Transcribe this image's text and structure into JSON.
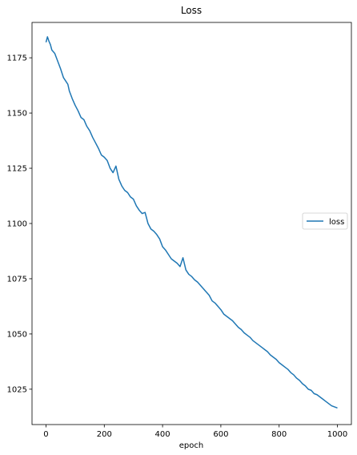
{
  "chart_data": {
    "type": "line",
    "title": "Loss",
    "xlabel": "epoch",
    "ylabel": "",
    "xlim": [
      -48,
      1048
    ],
    "ylim": [
      1009,
      1191
    ],
    "xticks": [
      0,
      200,
      400,
      600,
      800,
      1000
    ],
    "yticks": [
      1025,
      1050,
      1075,
      1100,
      1125,
      1150,
      1175
    ],
    "grid": false,
    "legend_position": "center-right",
    "line_color": "#1f77b4",
    "series": [
      {
        "name": "loss",
        "x": [
          0,
          5,
          10,
          15,
          20,
          30,
          40,
          50,
          60,
          70,
          75,
          80,
          90,
          100,
          110,
          120,
          130,
          140,
          150,
          160,
          170,
          180,
          190,
          200,
          210,
          220,
          230,
          240,
          250,
          260,
          270,
          280,
          290,
          300,
          310,
          320,
          330,
          340,
          350,
          360,
          370,
          380,
          390,
          400,
          410,
          420,
          430,
          440,
          450,
          460,
          470,
          480,
          490,
          500,
          510,
          520,
          530,
          540,
          550,
          560,
          570,
          580,
          590,
          600,
          610,
          620,
          630,
          640,
          650,
          660,
          670,
          680,
          690,
          700,
          710,
          720,
          730,
          740,
          750,
          760,
          770,
          780,
          790,
          800,
          810,
          820,
          830,
          840,
          850,
          860,
          870,
          880,
          890,
          900,
          910,
          920,
          930,
          940,
          950,
          960,
          970,
          980,
          990,
          1000
        ],
        "y": [
          1182.0,
          1184.5,
          1182.5,
          1181.0,
          1178.5,
          1177.0,
          1173.5,
          1170.0,
          1166.0,
          1164.0,
          1163.0,
          1160.0,
          1156.5,
          1153.5,
          1151.0,
          1148.0,
          1147.0,
          1144.0,
          1142.0,
          1139.0,
          1136.5,
          1134.0,
          1131.0,
          1130.0,
          1128.5,
          1125.0,
          1123.0,
          1126.0,
          1120.0,
          1117.0,
          1115.0,
          1114.0,
          1112.0,
          1111.0,
          1108.0,
          1106.0,
          1104.5,
          1105.0,
          1100.0,
          1097.5,
          1096.5,
          1095.0,
          1093.0,
          1089.5,
          1088.0,
          1086.0,
          1084.0,
          1083.0,
          1082.0,
          1080.5,
          1084.5,
          1079.0,
          1077.0,
          1076.0,
          1074.5,
          1073.5,
          1072.0,
          1070.5,
          1069.0,
          1067.5,
          1065.0,
          1064.0,
          1062.5,
          1061.0,
          1059.0,
          1058.0,
          1057.0,
          1056.0,
          1054.5,
          1053.0,
          1052.0,
          1050.5,
          1049.5,
          1048.5,
          1047.0,
          1046.0,
          1045.0,
          1044.0,
          1043.0,
          1042.0,
          1040.5,
          1039.5,
          1038.5,
          1037.0,
          1036.0,
          1035.0,
          1034.0,
          1032.5,
          1031.5,
          1030.0,
          1029.0,
          1027.5,
          1026.5,
          1025.0,
          1024.5,
          1023.0,
          1022.5,
          1021.5,
          1020.5,
          1019.5,
          1018.5,
          1017.5,
          1017.0,
          1016.5
        ]
      }
    ]
  }
}
